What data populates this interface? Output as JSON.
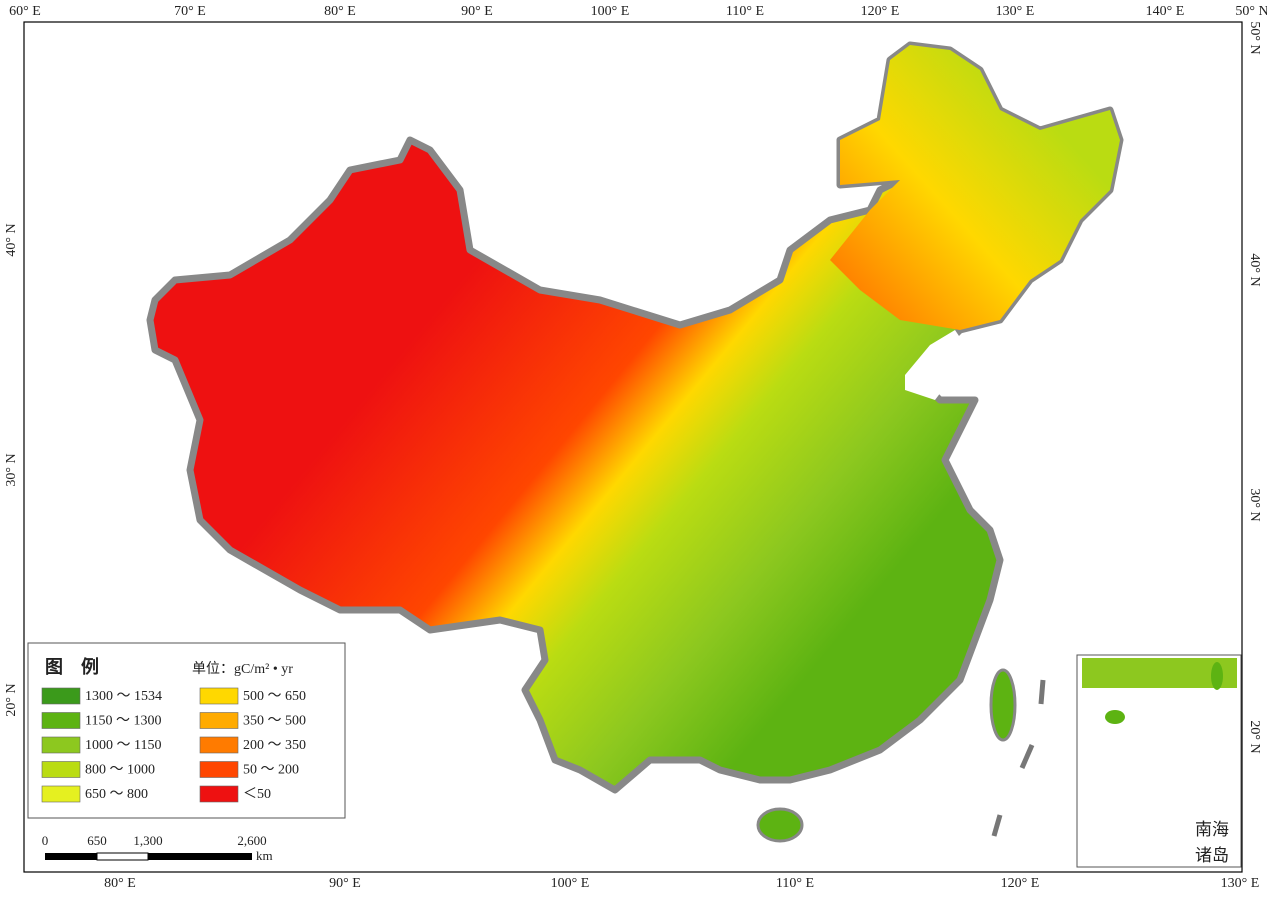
{
  "graticule": {
    "top": [
      "60° E",
      "70° E",
      "80° E",
      "90° E",
      "100° E",
      "110° E",
      "120° E",
      "130° E",
      "140° E",
      "50° N"
    ],
    "bottom": [
      "80° E",
      "90° E",
      "100° E",
      "110° E",
      "120° E",
      "130° E"
    ],
    "left": [
      "40° N",
      "30° N",
      "20° N"
    ],
    "right": [
      "50° N",
      "40° N",
      "30° N",
      "20° N"
    ]
  },
  "legend": {
    "title": "图　例",
    "unit": "单位：gC/m² • yr",
    "items": [
      {
        "label": "1300 ～ 1534",
        "color": "#3b9a1b"
      },
      {
        "label": "1150 ～ 1300",
        "color": "#5db312"
      },
      {
        "label": "1000 ～ 1150",
        "color": "#8dc81f"
      },
      {
        "label": "800 ～ 1000",
        "color": "#badc12"
      },
      {
        "label": "650 ～ 800",
        "color": "#e5f020"
      },
      {
        "label": "500 ～ 650",
        "color": "#ffd800"
      },
      {
        "label": "350 ～ 500",
        "color": "#ffab00"
      },
      {
        "label": "200 ～ 350",
        "color": "#ff7b00"
      },
      {
        "label": "50 ～ 200",
        "color": "#ff4600"
      },
      {
        "label": "＜50",
        "color": "#ee1111"
      }
    ]
  },
  "scale_bar": {
    "labels": [
      "0",
      "650",
      "1,300",
      "2,600"
    ],
    "unit": "km"
  },
  "inset": {
    "label_lines": [
      "南海",
      "诸岛"
    ]
  }
}
